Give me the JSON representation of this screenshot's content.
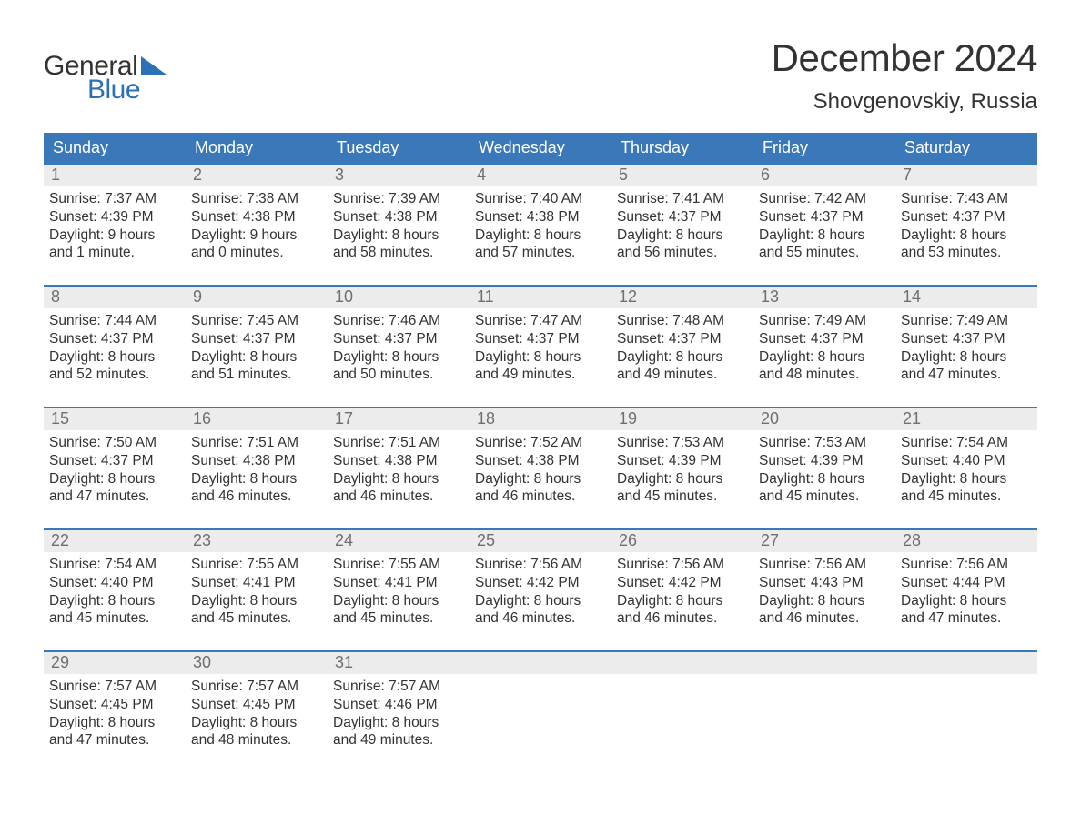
{
  "brand": {
    "word1": "General",
    "word2": "Blue",
    "accent_color": "#2b71b8"
  },
  "title": "December 2024",
  "location": "Shovgenovskiy, Russia",
  "colors": {
    "header_bg": "#3a78b9",
    "header_text": "#ffffff",
    "date_bg": "#ececec",
    "date_text": "#6f6f6f",
    "body_text": "#333333",
    "week_border": "#3a78b9",
    "page_bg": "#ffffff"
  },
  "typography": {
    "title_fontsize": 42,
    "location_fontsize": 24,
    "dayhead_fontsize": 18,
    "date_fontsize": 18,
    "body_fontsize": 15.5,
    "font_family": "Arial"
  },
  "day_names": [
    "Sunday",
    "Monday",
    "Tuesday",
    "Wednesday",
    "Thursday",
    "Friday",
    "Saturday"
  ],
  "weeks": [
    [
      {
        "date": "1",
        "sunrise": "Sunrise: 7:37 AM",
        "sunset": "Sunset: 4:39 PM",
        "daylight": "Daylight: 9 hours and 1 minute."
      },
      {
        "date": "2",
        "sunrise": "Sunrise: 7:38 AM",
        "sunset": "Sunset: 4:38 PM",
        "daylight": "Daylight: 9 hours and 0 minutes."
      },
      {
        "date": "3",
        "sunrise": "Sunrise: 7:39 AM",
        "sunset": "Sunset: 4:38 PM",
        "daylight": "Daylight: 8 hours and 58 minutes."
      },
      {
        "date": "4",
        "sunrise": "Sunrise: 7:40 AM",
        "sunset": "Sunset: 4:38 PM",
        "daylight": "Daylight: 8 hours and 57 minutes."
      },
      {
        "date": "5",
        "sunrise": "Sunrise: 7:41 AM",
        "sunset": "Sunset: 4:37 PM",
        "daylight": "Daylight: 8 hours and 56 minutes."
      },
      {
        "date": "6",
        "sunrise": "Sunrise: 7:42 AM",
        "sunset": "Sunset: 4:37 PM",
        "daylight": "Daylight: 8 hours and 55 minutes."
      },
      {
        "date": "7",
        "sunrise": "Sunrise: 7:43 AM",
        "sunset": "Sunset: 4:37 PM",
        "daylight": "Daylight: 8 hours and 53 minutes."
      }
    ],
    [
      {
        "date": "8",
        "sunrise": "Sunrise: 7:44 AM",
        "sunset": "Sunset: 4:37 PM",
        "daylight": "Daylight: 8 hours and 52 minutes."
      },
      {
        "date": "9",
        "sunrise": "Sunrise: 7:45 AM",
        "sunset": "Sunset: 4:37 PM",
        "daylight": "Daylight: 8 hours and 51 minutes."
      },
      {
        "date": "10",
        "sunrise": "Sunrise: 7:46 AM",
        "sunset": "Sunset: 4:37 PM",
        "daylight": "Daylight: 8 hours and 50 minutes."
      },
      {
        "date": "11",
        "sunrise": "Sunrise: 7:47 AM",
        "sunset": "Sunset: 4:37 PM",
        "daylight": "Daylight: 8 hours and 49 minutes."
      },
      {
        "date": "12",
        "sunrise": "Sunrise: 7:48 AM",
        "sunset": "Sunset: 4:37 PM",
        "daylight": "Daylight: 8 hours and 49 minutes."
      },
      {
        "date": "13",
        "sunrise": "Sunrise: 7:49 AM",
        "sunset": "Sunset: 4:37 PM",
        "daylight": "Daylight: 8 hours and 48 minutes."
      },
      {
        "date": "14",
        "sunrise": "Sunrise: 7:49 AM",
        "sunset": "Sunset: 4:37 PM",
        "daylight": "Daylight: 8 hours and 47 minutes."
      }
    ],
    [
      {
        "date": "15",
        "sunrise": "Sunrise: 7:50 AM",
        "sunset": "Sunset: 4:37 PM",
        "daylight": "Daylight: 8 hours and 47 minutes."
      },
      {
        "date": "16",
        "sunrise": "Sunrise: 7:51 AM",
        "sunset": "Sunset: 4:38 PM",
        "daylight": "Daylight: 8 hours and 46 minutes."
      },
      {
        "date": "17",
        "sunrise": "Sunrise: 7:51 AM",
        "sunset": "Sunset: 4:38 PM",
        "daylight": "Daylight: 8 hours and 46 minutes."
      },
      {
        "date": "18",
        "sunrise": "Sunrise: 7:52 AM",
        "sunset": "Sunset: 4:38 PM",
        "daylight": "Daylight: 8 hours and 46 minutes."
      },
      {
        "date": "19",
        "sunrise": "Sunrise: 7:53 AM",
        "sunset": "Sunset: 4:39 PM",
        "daylight": "Daylight: 8 hours and 45 minutes."
      },
      {
        "date": "20",
        "sunrise": "Sunrise: 7:53 AM",
        "sunset": "Sunset: 4:39 PM",
        "daylight": "Daylight: 8 hours and 45 minutes."
      },
      {
        "date": "21",
        "sunrise": "Sunrise: 7:54 AM",
        "sunset": "Sunset: 4:40 PM",
        "daylight": "Daylight: 8 hours and 45 minutes."
      }
    ],
    [
      {
        "date": "22",
        "sunrise": "Sunrise: 7:54 AM",
        "sunset": "Sunset: 4:40 PM",
        "daylight": "Daylight: 8 hours and 45 minutes."
      },
      {
        "date": "23",
        "sunrise": "Sunrise: 7:55 AM",
        "sunset": "Sunset: 4:41 PM",
        "daylight": "Daylight: 8 hours and 45 minutes."
      },
      {
        "date": "24",
        "sunrise": "Sunrise: 7:55 AM",
        "sunset": "Sunset: 4:41 PM",
        "daylight": "Daylight: 8 hours and 45 minutes."
      },
      {
        "date": "25",
        "sunrise": "Sunrise: 7:56 AM",
        "sunset": "Sunset: 4:42 PM",
        "daylight": "Daylight: 8 hours and 46 minutes."
      },
      {
        "date": "26",
        "sunrise": "Sunrise: 7:56 AM",
        "sunset": "Sunset: 4:42 PM",
        "daylight": "Daylight: 8 hours and 46 minutes."
      },
      {
        "date": "27",
        "sunrise": "Sunrise: 7:56 AM",
        "sunset": "Sunset: 4:43 PM",
        "daylight": "Daylight: 8 hours and 46 minutes."
      },
      {
        "date": "28",
        "sunrise": "Sunrise: 7:56 AM",
        "sunset": "Sunset: 4:44 PM",
        "daylight": "Daylight: 8 hours and 47 minutes."
      }
    ],
    [
      {
        "date": "29",
        "sunrise": "Sunrise: 7:57 AM",
        "sunset": "Sunset: 4:45 PM",
        "daylight": "Daylight: 8 hours and 47 minutes."
      },
      {
        "date": "30",
        "sunrise": "Sunrise: 7:57 AM",
        "sunset": "Sunset: 4:45 PM",
        "daylight": "Daylight: 8 hours and 48 minutes."
      },
      {
        "date": "31",
        "sunrise": "Sunrise: 7:57 AM",
        "sunset": "Sunset: 4:46 PM",
        "daylight": "Daylight: 8 hours and 49 minutes."
      },
      {
        "date": "",
        "sunrise": "",
        "sunset": "",
        "daylight": ""
      },
      {
        "date": "",
        "sunrise": "",
        "sunset": "",
        "daylight": ""
      },
      {
        "date": "",
        "sunrise": "",
        "sunset": "",
        "daylight": ""
      },
      {
        "date": "",
        "sunrise": "",
        "sunset": "",
        "daylight": ""
      }
    ]
  ]
}
